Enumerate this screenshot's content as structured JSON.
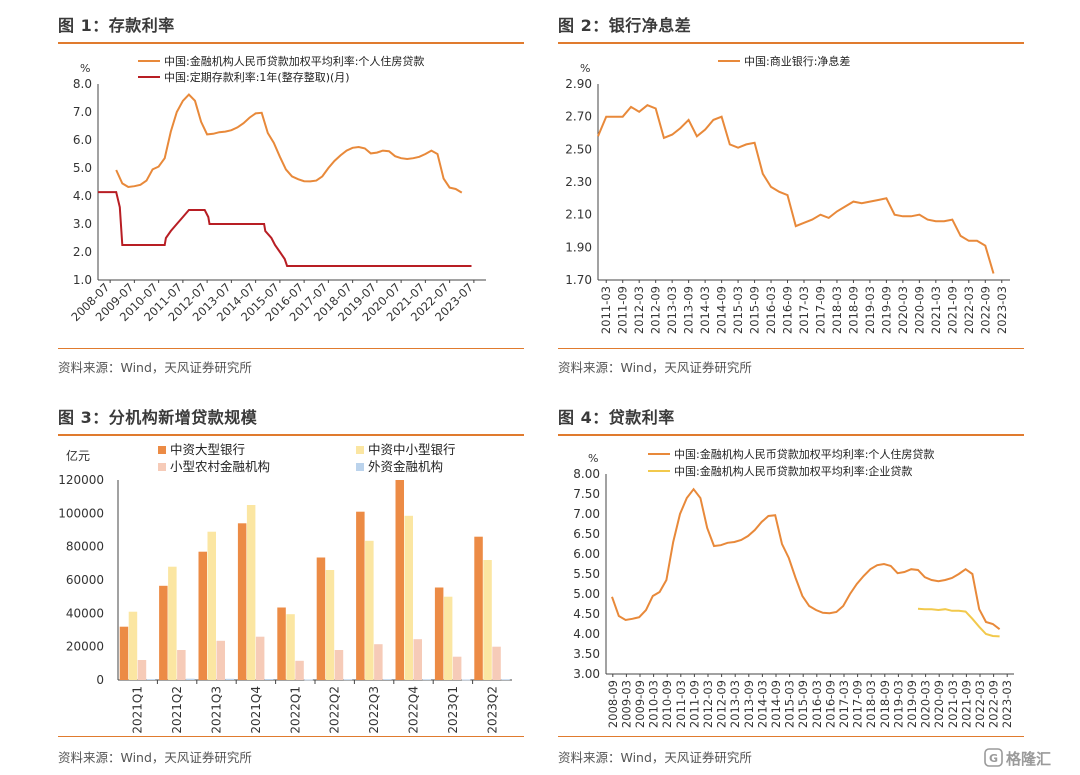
{
  "panels": [
    {
      "title": "图 1：存款利率",
      "source": "资料来源：Wind，天风证券研究所"
    },
    {
      "title": "图 2：银行净息差",
      "source": "资料来源：Wind，天风证券研究所"
    },
    {
      "title": "图 3：分机构新增贷款规模",
      "source": "资料来源：Wind，天风证券研究所"
    },
    {
      "title": "图 4：贷款利率",
      "source": "资料来源：Wind，天风证券研究所"
    }
  ],
  "colors": {
    "orange": "#E8893A",
    "darkred": "#B81E24",
    "yellow": "#F2C94C",
    "bar_orange": "#EC8B45",
    "bar_yellow": "#FBE6A2",
    "bar_pink": "#F6CBB8",
    "bar_blue": "#BBD3EC",
    "rule": "#E07B2E"
  },
  "watermark": {
    "text": "格隆汇"
  },
  "chart_data": [
    {
      "type": "line",
      "ylabel": "%",
      "ylim": [
        1.0,
        8.0
      ],
      "yticks": [
        "8.0",
        "7.0",
        "6.0",
        "5.0",
        "4.0",
        "3.0",
        "2.0",
        "1.0"
      ],
      "xticks": [
        "2008-07",
        "2009-07",
        "2010-07",
        "2011-07",
        "2012-07",
        "2013-07",
        "2014-07",
        "2015-07",
        "2016-07",
        "2017-07",
        "2018-07",
        "2019-07",
        "2020-07",
        "2021-07",
        "2022-07",
        "2023-07"
      ],
      "grid": false,
      "legend_position": "top",
      "series": [
        {
          "name": "中国:金融机构人民币贷款加权平均利率:个人住房贷款",
          "color": "#E8893A",
          "points": [
            [
              2008.75,
              4.93
            ],
            [
              2009.0,
              4.45
            ],
            [
              2009.25,
              4.32
            ],
            [
              2009.5,
              4.35
            ],
            [
              2009.75,
              4.4
            ],
            [
              2010.0,
              4.55
            ],
            [
              2010.25,
              4.95
            ],
            [
              2010.5,
              5.05
            ],
            [
              2010.75,
              5.35
            ],
            [
              2011.0,
              6.3
            ],
            [
              2011.25,
              7.0
            ],
            [
              2011.5,
              7.4
            ],
            [
              2011.75,
              7.62
            ],
            [
              2012.0,
              7.4
            ],
            [
              2012.25,
              6.65
            ],
            [
              2012.5,
              6.2
            ],
            [
              2012.75,
              6.22
            ],
            [
              2013.0,
              6.28
            ],
            [
              2013.25,
              6.3
            ],
            [
              2013.5,
              6.35
            ],
            [
              2013.75,
              6.45
            ],
            [
              2014.0,
              6.6
            ],
            [
              2014.25,
              6.8
            ],
            [
              2014.5,
              6.95
            ],
            [
              2014.75,
              6.97
            ],
            [
              2015.0,
              6.25
            ],
            [
              2015.25,
              5.9
            ],
            [
              2015.5,
              5.4
            ],
            [
              2015.75,
              4.95
            ],
            [
              2016.0,
              4.7
            ],
            [
              2016.25,
              4.6
            ],
            [
              2016.5,
              4.53
            ],
            [
              2016.75,
              4.52
            ],
            [
              2017.0,
              4.55
            ],
            [
              2017.25,
              4.7
            ],
            [
              2017.5,
              5.0
            ],
            [
              2017.75,
              5.25
            ],
            [
              2018.0,
              5.45
            ],
            [
              2018.25,
              5.62
            ],
            [
              2018.5,
              5.72
            ],
            [
              2018.75,
              5.75
            ],
            [
              2019.0,
              5.7
            ],
            [
              2019.25,
              5.52
            ],
            [
              2019.5,
              5.55
            ],
            [
              2019.75,
              5.62
            ],
            [
              2020.0,
              5.6
            ],
            [
              2020.25,
              5.42
            ],
            [
              2020.5,
              5.35
            ],
            [
              2020.75,
              5.32
            ],
            [
              2021.0,
              5.35
            ],
            [
              2021.25,
              5.4
            ],
            [
              2021.5,
              5.5
            ],
            [
              2021.75,
              5.62
            ],
            [
              2022.0,
              5.5
            ],
            [
              2022.25,
              4.62
            ],
            [
              2022.5,
              4.3
            ],
            [
              2022.75,
              4.25
            ],
            [
              2023.0,
              4.12
            ]
          ]
        },
        {
          "name": "中国:定期存款利率:1年(整存整取)(月)",
          "color": "#B81E24",
          "points": [
            [
              2008.0,
              4.14
            ],
            [
              2008.75,
              4.14
            ],
            [
              2008.9,
              3.6
            ],
            [
              2009.0,
              2.25
            ],
            [
              2010.75,
              2.25
            ],
            [
              2010.8,
              2.5
            ],
            [
              2011.0,
              2.75
            ],
            [
              2011.25,
              3.0
            ],
            [
              2011.5,
              3.25
            ],
            [
              2011.75,
              3.5
            ],
            [
              2012.4,
              3.5
            ],
            [
              2012.55,
              3.25
            ],
            [
              2012.6,
              3.0
            ],
            [
              2014.85,
              3.0
            ],
            [
              2014.9,
              2.75
            ],
            [
              2015.15,
              2.5
            ],
            [
              2015.3,
              2.25
            ],
            [
              2015.5,
              2.0
            ],
            [
              2015.7,
              1.75
            ],
            [
              2015.8,
              1.5
            ],
            [
              2023.4,
              1.5
            ]
          ]
        }
      ]
    },
    {
      "type": "line",
      "ylabel": "%",
      "ylim": [
        1.7,
        2.9
      ],
      "yticks": [
        "2.90",
        "2.70",
        "2.50",
        "2.30",
        "2.10",
        "1.90",
        "1.70"
      ],
      "xticks": [
        "2011-03",
        "2011-09",
        "2012-03",
        "2012-09",
        "2013-03",
        "2013-09",
        "2014-03",
        "2014-09",
        "2015-03",
        "2015-09",
        "2016-03",
        "2016-09",
        "2017-03",
        "2017-09",
        "2018-03",
        "2018-09",
        "2019-03",
        "2019-09",
        "2020-03",
        "2020-09",
        "2021-03",
        "2021-09",
        "2022-03",
        "2022-09",
        "2023-03"
      ],
      "grid": false,
      "legend_position": "top",
      "series": [
        {
          "name": "中国:商业银行:净息差",
          "color": "#E8893A",
          "values": [
            2.58,
            2.7,
            2.7,
            2.7,
            2.76,
            2.73,
            2.77,
            2.75,
            2.57,
            2.59,
            2.63,
            2.68,
            2.58,
            2.62,
            2.68,
            2.7,
            2.53,
            2.51,
            2.53,
            2.54,
            2.35,
            2.27,
            2.24,
            2.22,
            2.03,
            2.05,
            2.07,
            2.1,
            2.08,
            2.12,
            2.15,
            2.18,
            2.17,
            2.18,
            2.19,
            2.2,
            2.1,
            2.09,
            2.09,
            2.1,
            2.07,
            2.06,
            2.06,
            2.07,
            1.97,
            1.94,
            1.94,
            1.91,
            1.74
          ]
        }
      ]
    },
    {
      "type": "bar",
      "ylabel": "亿元",
      "ylim": [
        0,
        120000
      ],
      "yticks": [
        "120000",
        "100000",
        "80000",
        "60000",
        "40000",
        "20000",
        "0"
      ],
      "categories": [
        "2021Q1",
        "2021Q2",
        "2021Q3",
        "2021Q4",
        "2022Q1",
        "2022Q2",
        "2022Q3",
        "2022Q4",
        "2023Q1",
        "2023Q2"
      ],
      "grid": false,
      "legend_position": "top",
      "series": [
        {
          "name": "中资大型银行",
          "color": "#EC8B45",
          "values": [
            32000,
            56500,
            77000,
            94000,
            43500,
            73500,
            101000,
            120000,
            55500,
            86000
          ]
        },
        {
          "name": "中资中小型银行",
          "color": "#FBE6A2",
          "values": [
            41000,
            68000,
            89000,
            105000,
            39500,
            66000,
            83500,
            98500,
            50000,
            72000
          ]
        },
        {
          "name": "小型农村金融机构",
          "color": "#F6CBB8",
          "values": [
            12000,
            18000,
            23500,
            26000,
            11500,
            18000,
            21500,
            24500,
            14000,
            20000
          ]
        },
        {
          "name": "外资金融机构",
          "color": "#BBD3EC",
          "values": [
            500,
            800,
            700,
            600,
            300,
            400,
            500,
            400,
            300,
            400
          ]
        }
      ]
    },
    {
      "type": "line",
      "ylabel": "%",
      "ylim": [
        3.0,
        8.0
      ],
      "yticks": [
        "8.00",
        "7.50",
        "7.00",
        "6.50",
        "6.00",
        "5.50",
        "5.00",
        "4.50",
        "4.00",
        "3.50",
        "3.00"
      ],
      "xticks": [
        "2008-09",
        "2009-03",
        "2009-09",
        "2010-03",
        "2010-09",
        "2011-03",
        "2011-09",
        "2012-03",
        "2012-09",
        "2013-03",
        "2013-09",
        "2014-03",
        "2014-09",
        "2015-03",
        "2015-09",
        "2016-03",
        "2016-09",
        "2017-03",
        "2017-09",
        "2018-03",
        "2018-09",
        "2019-03",
        "2019-09",
        "2020-03",
        "2020-09",
        "2021-03",
        "2021-09",
        "2022-03",
        "2022-09",
        "2023-03"
      ],
      "grid": false,
      "legend_position": "top",
      "series": [
        {
          "name": "中国:金融机构人民币贷款加权平均利率:个人住房贷款",
          "color": "#E8893A",
          "values": [
            4.93,
            4.45,
            4.35,
            4.38,
            4.42,
            4.6,
            4.95,
            5.05,
            5.35,
            6.3,
            7.0,
            7.4,
            7.62,
            7.4,
            6.65,
            6.2,
            6.22,
            6.28,
            6.3,
            6.35,
            6.45,
            6.6,
            6.8,
            6.95,
            6.97,
            6.25,
            5.9,
            5.4,
            4.95,
            4.7,
            4.6,
            4.53,
            4.52,
            4.55,
            4.7,
            5.0,
            5.25,
            5.45,
            5.62,
            5.72,
            5.75,
            5.7,
            5.52,
            5.55,
            5.62,
            5.6,
            5.42,
            5.35,
            5.32,
            5.35,
            5.4,
            5.5,
            5.62,
            5.5,
            4.62,
            4.3,
            4.25,
            4.12
          ]
        },
        {
          "name": "中国:金融机构人民币贷款加权平均利率:企业贷款",
          "color": "#F2C94C",
          "start_index": 45,
          "values": [
            4.63,
            4.62,
            4.62,
            4.6,
            4.62,
            4.58,
            4.58,
            4.56,
            4.38,
            4.18,
            4.0,
            3.95,
            3.94
          ]
        }
      ]
    }
  ]
}
